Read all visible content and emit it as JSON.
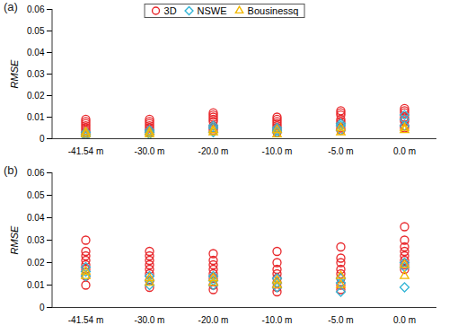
{
  "chart_data": [
    {
      "type": "scatter",
      "title": "(a)",
      "y_label": "RMSE",
      "categories": [
        "-41.54 m",
        "-30.0 m",
        "-20.0 m",
        "-10.0 m",
        "-5.0 m",
        "0.0 m"
      ],
      "ylim": [
        0,
        0.06
      ],
      "yticks": [
        0,
        0.01,
        0.02,
        0.03,
        0.04,
        0.05,
        0.06
      ],
      "legend": "top",
      "series": [
        {
          "name": "3D",
          "color": "#e8262a",
          "marker": "circle",
          "values": [
            [
              0.002,
              0.003,
              0.004,
              0.005,
              0.006,
              0.007,
              0.008,
              0.009
            ],
            [
              0.003,
              0.004,
              0.005,
              0.006,
              0.007,
              0.008,
              0.009
            ],
            [
              0.004,
              0.005,
              0.006,
              0.008,
              0.009,
              0.01,
              0.011,
              0.012
            ],
            [
              0.003,
              0.004,
              0.005,
              0.006,
              0.007,
              0.008,
              0.009,
              0.01
            ],
            [
              0.004,
              0.005,
              0.007,
              0.008,
              0.009,
              0.011,
              0.012,
              0.013
            ],
            [
              0.005,
              0.006,
              0.008,
              0.009,
              0.01,
              0.012,
              0.013,
              0.014
            ]
          ]
        },
        {
          "name": "NSWE",
          "color": "#33b5d6",
          "marker": "diamond",
          "values": [
            [
              0.001,
              0.002,
              0.003
            ],
            [
              0.002,
              0.003,
              0.004
            ],
            [
              0.003,
              0.005,
              0.006
            ],
            [
              0.003,
              0.004,
              0.005
            ],
            [
              0.004,
              0.006,
              0.007
            ],
            [
              0.006,
              0.009,
              0.011
            ]
          ]
        },
        {
          "name": "Bousinessq",
          "color": "#f2b800",
          "marker": "triangle",
          "values": [
            [
              0.002,
              0.003
            ],
            [
              0.002,
              0.003
            ],
            [
              0.003,
              0.004
            ],
            [
              0.002,
              0.004
            ],
            [
              0.003,
              0.005
            ],
            [
              0.004,
              0.005
            ]
          ]
        }
      ]
    },
    {
      "type": "scatter",
      "title": "(b)",
      "y_label": "RMSE",
      "categories": [
        "-41.54 m",
        "-30.0 m",
        "-20.0 m",
        "-10.0 m",
        "-5.0 m",
        "0.0 m"
      ],
      "ylim": [
        0,
        0.06
      ],
      "yticks": [
        0,
        0.01,
        0.02,
        0.03,
        0.04,
        0.05,
        0.06
      ],
      "series": [
        {
          "name": "3D",
          "color": "#e8262a",
          "marker": "circle",
          "values": [
            [
              0.01,
              0.014,
              0.017,
              0.019,
              0.021,
              0.023,
              0.025,
              0.03
            ],
            [
              0.009,
              0.012,
              0.015,
              0.017,
              0.019,
              0.021,
              0.023,
              0.025
            ],
            [
              0.008,
              0.01,
              0.013,
              0.015,
              0.017,
              0.019,
              0.021,
              0.024
            ],
            [
              0.007,
              0.009,
              0.011,
              0.013,
              0.015,
              0.017,
              0.02,
              0.025
            ],
            [
              0.008,
              0.01,
              0.013,
              0.015,
              0.017,
              0.02,
              0.022,
              0.027
            ],
            [
              0.017,
              0.019,
              0.021,
              0.023,
              0.025,
              0.027,
              0.03,
              0.036
            ]
          ]
        },
        {
          "name": "NSWE",
          "color": "#33b5d6",
          "marker": "diamond",
          "values": [
            [
              0.014,
              0.016,
              0.018
            ],
            [
              0.01,
              0.012,
              0.014
            ],
            [
              0.01,
              0.012,
              0.014
            ],
            [
              0.009,
              0.011,
              0.013
            ],
            [
              0.007,
              0.011,
              0.013
            ],
            [
              0.009,
              0.018,
              0.02
            ]
          ]
        },
        {
          "name": "Bousinessq",
          "color": "#f2b800",
          "marker": "triangle",
          "values": [
            [
              0.014,
              0.016
            ],
            [
              0.011,
              0.013
            ],
            [
              0.011,
              0.013
            ],
            [
              0.01,
              0.012
            ],
            [
              0.01,
              0.014
            ],
            [
              0.014,
              0.019
            ]
          ]
        }
      ]
    }
  ]
}
